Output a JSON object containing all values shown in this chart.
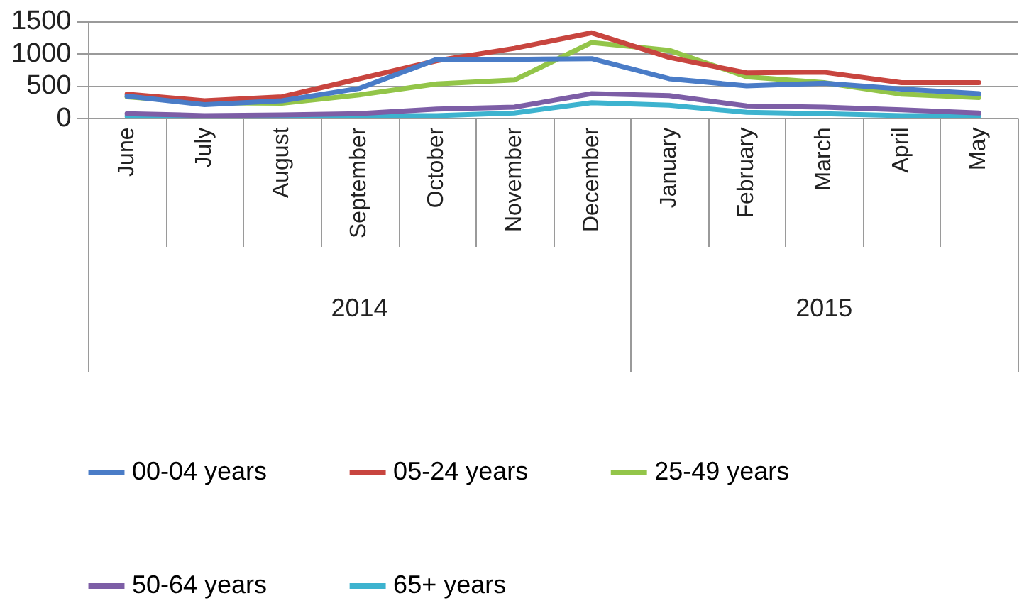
{
  "chart_data": {
    "type": "line",
    "categories": [
      "June",
      "July",
      "August",
      "September",
      "October",
      "November",
      "December",
      "January",
      "February",
      "March",
      "April",
      "May"
    ],
    "series": [
      {
        "name": "00-04 years",
        "color": "#4a7cc7",
        "values": [
          350,
          220,
          280,
          470,
          920,
          920,
          930,
          620,
          510,
          550,
          460,
          390
        ]
      },
      {
        "name": "05-24 years",
        "color": "#c8453f",
        "values": [
          380,
          280,
          340,
          620,
          900,
          1090,
          1330,
          950,
          710,
          720,
          560,
          560
        ]
      },
      {
        "name": "25-49 years",
        "color": "#93c549",
        "values": [
          340,
          250,
          240,
          370,
          540,
          600,
          1180,
          1060,
          650,
          560,
          380,
          330
        ]
      },
      {
        "name": "50-64 years",
        "color": "#7d5ea6",
        "values": [
          80,
          50,
          60,
          80,
          150,
          180,
          390,
          360,
          200,
          180,
          140,
          90
        ]
      },
      {
        "name": "65+ years",
        "color": "#3db3cf",
        "values": [
          40,
          40,
          40,
          50,
          50,
          90,
          250,
          210,
          100,
          80,
          50,
          50
        ]
      }
    ],
    "annotations": [
      "2014",
      "2015"
    ],
    "ylim": [
      0,
      1500
    ],
    "yticks": [
      0,
      500,
      1000,
      1500
    ],
    "grid": "y",
    "legend": "bottom",
    "marker": "none",
    "line_style": "solid"
  }
}
